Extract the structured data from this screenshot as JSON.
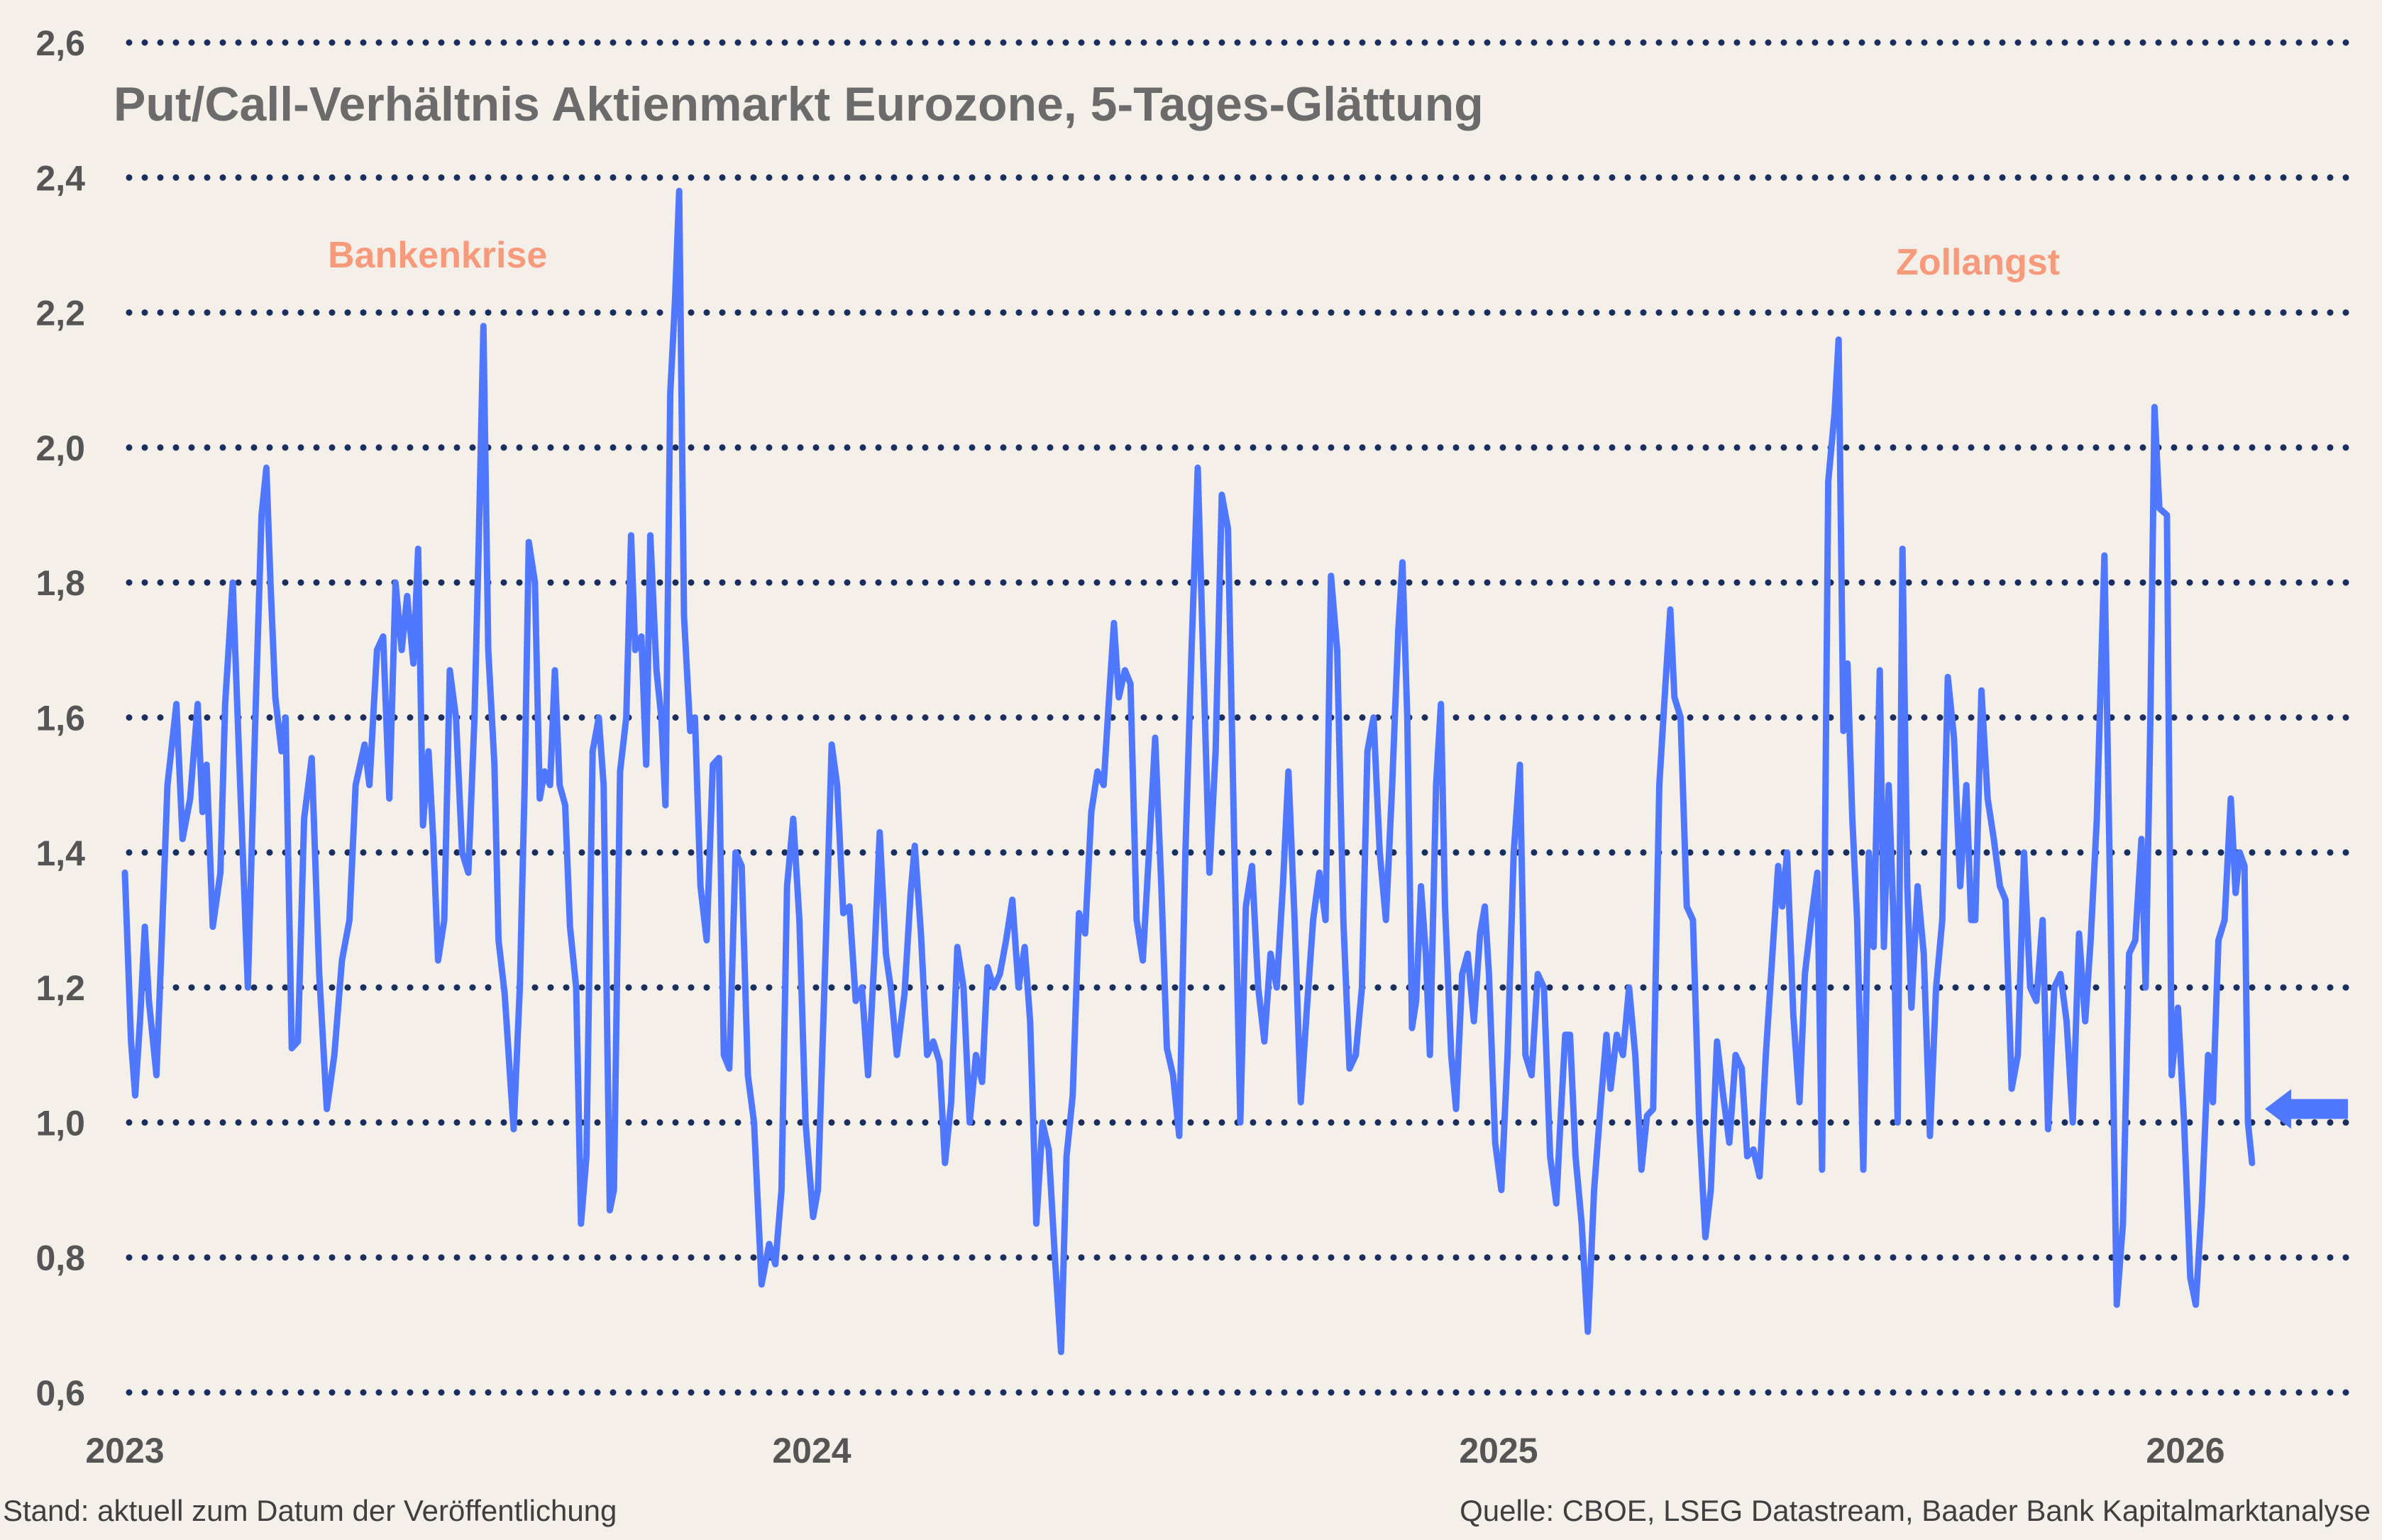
{
  "chart_data": {
    "type": "line",
    "title": "Put/Call-Verhältnis Aktienmarkt Eurozone, 5-Tages-Glättung",
    "xlabel": "",
    "ylabel": "",
    "ylim": [
      0.6,
      2.6
    ],
    "yticks": [
      "0,6",
      "0,8",
      "1,0",
      "1,2",
      "1,4",
      "1,6",
      "1,8",
      "2,0",
      "2,2",
      "2,4",
      "2,6"
    ],
    "ytick_values": [
      0.6,
      0.8,
      1.0,
      1.2,
      1.4,
      1.6,
      1.8,
      2.0,
      2.2,
      2.4,
      2.6
    ],
    "xticks": [
      "2023",
      "2024",
      "2025",
      "2026"
    ],
    "xtick_values": [
      2023,
      2024,
      2025,
      2026
    ],
    "xlim": [
      2023,
      2026.2
    ],
    "grid": "horizontal dotted",
    "colors": {
      "line": "#4f78ff",
      "grid": "#1a2f5e",
      "annotation": "#f79a7c",
      "arrow": "#4f78ff"
    },
    "annotations": [
      {
        "text": "Bankenkrise",
        "x": 2023.25
      },
      {
        "text": "Zollangst",
        "x": 2025.55
      }
    ],
    "marker": {
      "type": "arrow-left",
      "value": 1.02
    },
    "series": [
      {
        "x": [
          2023.0,
          2023.009,
          2023.015,
          2023.022,
          2023.029,
          2023.035,
          2023.046,
          2023.053,
          2023.062,
          2023.075,
          2023.084,
          2023.095,
          2023.106,
          2023.113,
          2023.119,
          2023.128,
          2023.139,
          2023.146,
          2023.157,
          2023.166,
          2023.179,
          2023.19,
          2023.199,
          2023.206,
          2023.212,
          2023.219,
          2023.228,
          2023.234,
          2023.243,
          2023.252,
          2023.261,
          2023.272,
          2023.283,
          2023.294,
          2023.305,
          2023.316,
          2023.327,
          2023.336,
          2023.349,
          2023.356,
          2023.367,
          2023.376,
          2023.385,
          2023.394,
          2023.403,
          2023.411,
          2023.42,
          2023.427,
          2023.434,
          2023.442,
          2023.449,
          2023.456,
          2023.465,
          2023.473,
          2023.482,
          2023.491,
          2023.5,
          2023.509,
          2023.515,
          2023.522,
          2023.529,
          2023.538,
          2023.544,
          2023.553,
          2023.562,
          2023.566,
          2023.575,
          2023.582,
          2023.588,
          2023.597,
          2023.604,
          2023.611,
          2023.619,
          2023.626,
          2023.633,
          2023.641,
          2023.648,
          2023.657,
          2023.664,
          2023.672,
          2023.681,
          2023.69,
          2023.697,
          2023.706,
          2023.712,
          2023.721,
          2023.73,
          2023.737,
          2023.743,
          2023.752,
          2023.759,
          2023.765,
          2023.774,
          2023.781,
          2023.787,
          2023.794,
          2023.801,
          2023.807,
          2023.814,
          2023.823,
          2023.83,
          2023.838,
          2023.847,
          2023.856,
          2023.865,
          2023.872,
          2023.88,
          2023.889,
          2023.898,
          2023.907,
          2023.916,
          2023.927,
          2023.938,
          2023.947,
          2023.956,
          2023.964,
          2023.973,
          2023.982,
          2023.991,
          2024.002,
          2024.009,
          2024.02,
          2024.029,
          2024.037,
          2024.046,
          2024.055,
          2024.064,
          2024.073,
          2024.082,
          2024.091,
          2024.099,
          2024.108,
          2024.115,
          2024.124,
          2024.135,
          2024.144,
          2024.15,
          2024.159,
          2024.168,
          2024.177,
          2024.186,
          2024.194,
          2024.203,
          2024.212,
          2024.221,
          2024.23,
          2024.239,
          2024.248,
          2024.256,
          2024.265,
          2024.274,
          2024.283,
          2024.292,
          2024.301,
          2024.31,
          2024.318,
          2024.327,
          2024.336,
          2024.345,
          2024.354,
          2024.363,
          2024.371,
          2024.38,
          2024.389,
          2024.398,
          2024.407,
          2024.416,
          2024.425,
          2024.433,
          2024.44,
          2024.447,
          2024.456,
          2024.464,
          2024.473,
          2024.482,
          2024.491,
          2024.5,
          2024.509,
          2024.517,
          2024.526,
          2024.535,
          2024.544,
          2024.553,
          2024.562,
          2024.571,
          2024.579,
          2024.588,
          2024.597,
          2024.606,
          2024.615,
          2024.624,
          2024.632,
          2024.641,
          2024.65,
          2024.659,
          2024.668,
          2024.677,
          2024.686,
          2024.694,
          2024.703,
          2024.712,
          2024.721,
          2024.73,
          2024.739,
          2024.748,
          2024.756,
          2024.765,
          2024.774,
          2024.783,
          2024.792,
          2024.801,
          2024.809,
          2024.818,
          2024.827,
          2024.836,
          2024.845,
          2024.854,
          2024.86,
          2024.867,
          2024.874,
          2024.88,
          2024.887,
          2024.894,
          2024.9,
          2024.909,
          2024.916,
          2024.922,
          2024.931,
          2024.938,
          2024.947,
          2024.955,
          2024.964,
          2024.973,
          2024.98,
          2024.986,
          2024.995,
          2025.004,
          2025.013,
          2025.022,
          2025.031,
          2025.039,
          2025.048,
          2025.057,
          2025.066,
          2025.075,
          2025.084,
          2025.09,
          2025.097,
          2025.104,
          2025.112,
          2025.121,
          2025.13,
          2025.139,
          2025.148,
          2025.157,
          2025.163,
          2025.172,
          2025.181,
          2025.19,
          2025.199,
          2025.208,
          2025.216,
          2025.225,
          2025.234,
          2025.243,
          2025.25,
          2025.256,
          2025.265,
          2025.274,
          2025.283,
          2025.292,
          2025.301,
          2025.309,
          2025.318,
          2025.327,
          2025.336,
          2025.345,
          2025.354,
          2025.362,
          2025.371,
          2025.38,
          2025.389,
          2025.398,
          2025.407,
          2025.413,
          2025.42,
          2025.429,
          2025.438,
          2025.446,
          2025.455,
          2025.464,
          2025.471,
          2025.48,
          2025.489,
          2025.495,
          2025.502,
          2025.508,
          2025.515,
          2025.522,
          2025.531,
          2025.539,
          2025.546,
          2025.555,
          2025.561,
          2025.568,
          2025.575,
          2025.581,
          2025.588,
          2025.595,
          2025.601,
          2025.61,
          2025.619,
          2025.628,
          2025.637,
          2025.646,
          2025.654,
          2025.663,
          2025.672,
          2025.681,
          2025.688,
          2025.694,
          2025.703,
          2025.712,
          2025.721,
          2025.73,
          2025.738,
          2025.747,
          2025.756,
          2025.765,
          2025.774,
          2025.783,
          2025.792,
          2025.8,
          2025.809,
          2025.818,
          2025.827,
          2025.836,
          2025.845,
          2025.854,
          2025.862,
          2025.871,
          2025.882,
          2025.891,
          2025.9,
          2025.909,
          2025.918,
          2025.927,
          2025.936,
          2025.942,
          2025.949,
          2025.955,
          2025.962,
          2025.973,
          2025.98,
          2025.989,
          2025.998,
          2026.007,
          2026.015,
          2026.024,
          2026.033,
          2026.04,
          2026.048,
          2026.057,
          2026.066,
          2026.073,
          2026.079,
          2026.086,
          2026.091,
          2026.097
        ],
        "y": [
          1.37,
          1.12,
          1.04,
          1.15,
          1.29,
          1.18,
          1.07,
          1.25,
          1.5,
          1.62,
          1.42,
          1.48,
          1.62,
          1.46,
          1.53,
          1.29,
          1.37,
          1.62,
          1.8,
          1.55,
          1.2,
          1.6,
          1.9,
          1.97,
          1.8,
          1.63,
          1.55,
          1.6,
          1.11,
          1.12,
          1.45,
          1.54,
          1.22,
          1.02,
          1.1,
          1.24,
          1.3,
          1.5,
          1.56,
          1.5,
          1.7,
          1.72,
          1.48,
          1.8,
          1.7,
          1.78,
          1.68,
          1.85,
          1.44,
          1.55,
          1.42,
          1.24,
          1.3,
          1.67,
          1.6,
          1.4,
          1.37,
          1.6,
          1.85,
          2.18,
          1.7,
          1.53,
          1.27,
          1.19,
          1.05,
          0.99,
          1.2,
          1.5,
          1.86,
          1.8,
          1.48,
          1.52,
          1.5,
          1.67,
          1.5,
          1.47,
          1.29,
          1.2,
          0.85,
          0.95,
          1.55,
          1.6,
          1.5,
          0.87,
          0.9,
          1.52,
          1.6,
          1.87,
          1.7,
          1.72,
          1.53,
          1.87,
          1.67,
          1.6,
          1.47,
          2.08,
          2.22,
          2.38,
          1.75,
          1.58,
          1.6,
          1.35,
          1.27,
          1.53,
          1.54,
          1.1,
          1.08,
          1.4,
          1.38,
          1.07,
          1.0,
          0.76,
          0.82,
          0.79,
          0.9,
          1.35,
          1.45,
          1.3,
          1.0,
          0.86,
          0.9,
          1.25,
          1.56,
          1.5,
          1.31,
          1.32,
          1.18,
          1.2,
          1.07,
          1.24,
          1.43,
          1.25,
          1.2,
          1.1,
          1.19,
          1.34,
          1.41,
          1.28,
          1.1,
          1.12,
          1.09,
          0.94,
          1.03,
          1.26,
          1.2,
          1.0,
          1.1,
          1.06,
          1.23,
          1.2,
          1.22,
          1.27,
          1.33,
          1.2,
          1.26,
          1.15,
          0.85,
          1.0,
          0.96,
          0.8,
          0.66,
          0.95,
          1.04,
          1.31,
          1.28,
          1.46,
          1.52,
          1.5,
          1.63,
          1.74,
          1.63,
          1.67,
          1.65,
          1.3,
          1.24,
          1.4,
          1.57,
          1.35,
          1.11,
          1.07,
          0.98,
          1.4,
          1.7,
          1.97,
          1.65,
          1.37,
          1.55,
          1.93,
          1.88,
          1.42,
          1.0,
          1.32,
          1.38,
          1.2,
          1.12,
          1.25,
          1.2,
          1.35,
          1.52,
          1.3,
          1.03,
          1.17,
          1.3,
          1.37,
          1.3,
          1.81,
          1.7,
          1.3,
          1.08,
          1.1,
          1.2,
          1.55,
          1.6,
          1.4,
          1.3,
          1.5,
          1.73,
          1.83,
          1.6,
          1.14,
          1.18,
          1.35,
          1.25,
          1.1,
          1.5,
          1.62,
          1.32,
          1.1,
          1.02,
          1.22,
          1.25,
          1.15,
          1.28,
          1.32,
          1.22,
          0.97,
          0.9,
          1.1,
          1.4,
          1.53,
          1.1,
          1.07,
          1.22,
          1.2,
          0.95,
          0.88,
          1.0,
          1.13,
          1.13,
          0.95,
          0.85,
          0.69,
          0.9,
          1.02,
          1.13,
          1.05,
          1.13,
          1.1,
          1.2,
          1.1,
          0.93,
          1.01,
          1.02,
          1.5,
          1.65,
          1.76,
          1.63,
          1.6,
          1.32,
          1.3,
          1.0,
          0.83,
          0.9,
          1.12,
          1.04,
          0.97,
          1.1,
          1.08,
          0.95,
          0.96,
          0.92,
          1.1,
          1.24,
          1.38,
          1.32,
          1.4,
          1.16,
          1.03,
          1.22,
          1.3,
          1.37,
          0.93,
          1.95,
          2.05,
          2.16,
          1.58,
          1.68,
          1.45,
          1.3,
          0.93,
          1.4,
          1.26,
          1.67,
          1.26,
          1.5,
          1.3,
          1.0,
          1.85,
          1.35,
          1.17,
          1.35,
          1.25,
          0.98,
          1.2,
          1.3,
          1.66,
          1.57,
          1.35,
          1.5,
          1.3,
          1.3,
          1.64,
          1.48,
          1.42,
          1.35,
          1.33,
          1.05,
          1.1,
          1.4,
          1.2,
          1.18,
          1.3,
          0.99,
          1.2,
          1.22,
          1.15,
          1.0,
          1.28,
          1.15,
          1.27,
          1.45,
          1.84,
          1.3,
          0.73,
          0.85,
          1.25,
          1.27,
          1.42,
          1.2,
          1.6,
          2.06,
          1.91,
          1.9,
          1.07,
          1.17,
          1.0,
          0.77,
          0.73,
          0.88,
          1.1,
          1.03,
          1.27,
          1.3,
          1.48,
          1.34,
          1.4,
          1.38,
          1.0,
          0.94
        ]
      }
    ]
  },
  "footer": {
    "left": "Stand: aktuell zum Datum der Veröffentlichung",
    "right": "Quelle: CBOE, LSEG Datastream, Baader Bank Kapitalmarktanalyse"
  }
}
